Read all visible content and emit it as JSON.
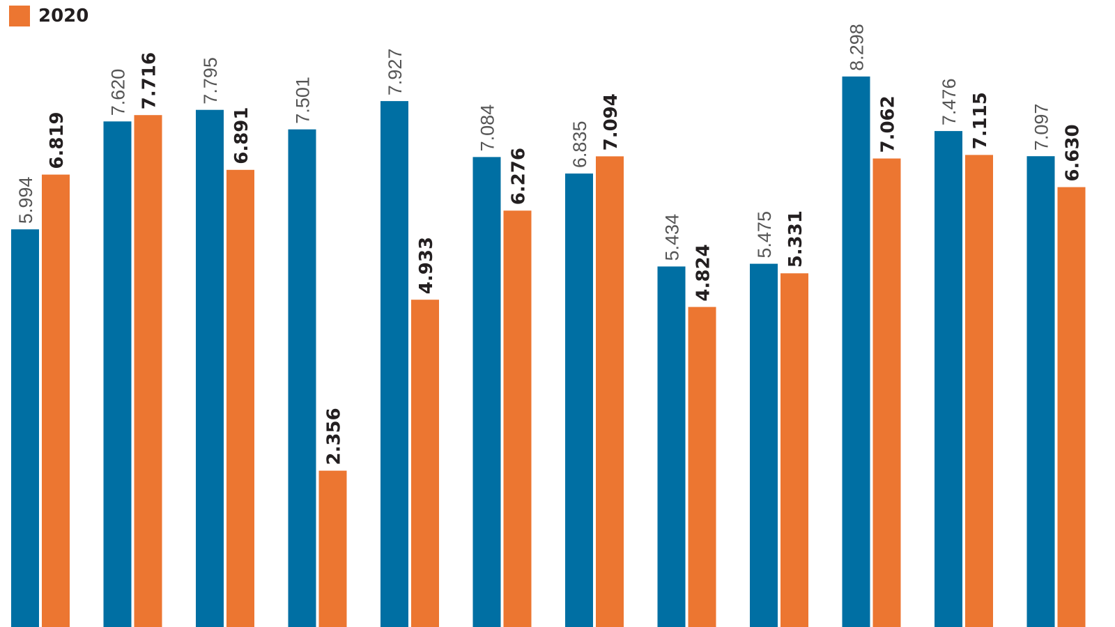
{
  "colors": {
    "series_a": "#006fa3",
    "series_b": "#ec7631",
    "label_a": "#555555",
    "label_b": "#231f20"
  },
  "legend": {
    "label": "2020"
  },
  "chart_data": {
    "type": "bar",
    "title": "",
    "xlabel": "",
    "ylabel": "",
    "ylim": [
      0,
      9.1
    ],
    "grid": false,
    "legend_position": "top-left",
    "categories": [
      "",
      "",
      "",
      "",
      "",
      "",
      "",
      "",
      "",
      "",
      "",
      ""
    ],
    "series": [
      {
        "values": [
          5.994,
          7.62,
          7.795,
          7.501,
          7.927,
          7.084,
          6.835,
          5.434,
          5.475,
          8.298,
          7.476,
          7.097
        ],
        "labels": [
          "5.994",
          "7.620",
          "7.795",
          "7.501",
          "7.927",
          "7.084",
          "6.835",
          "5.434",
          "5.475",
          "8.298",
          "7.476",
          "7.097"
        ]
      },
      {
        "name": "2020",
        "values": [
          6.819,
          7.716,
          6.891,
          2.356,
          4.933,
          6.276,
          7.094,
          4.824,
          5.331,
          7.062,
          7.115,
          6.63
        ],
        "labels": [
          "6.819",
          "7.716",
          "6.891",
          "2.356",
          "4.933",
          "6.276",
          "7.094",
          "4.824",
          "5.331",
          "7.062",
          "7.115",
          "6.630"
        ]
      }
    ]
  }
}
